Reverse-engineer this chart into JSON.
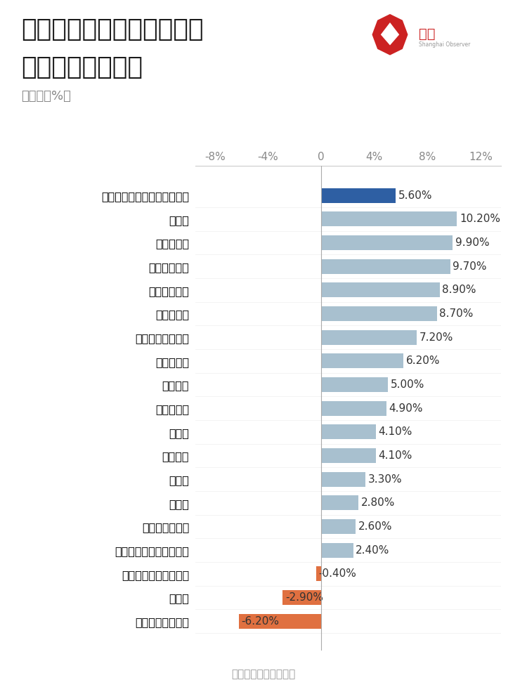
{
  "title_line1": "部分限上单位消费品零售额",
  "title_line2": "复合增长率为负值",
  "subtitle": "（单位：%）",
  "source": "数据来源：国家统计局",
  "categories": [
    "限上单位消费品零售额当期值",
    "烟酒类",
    "中西药品类",
    "石油及制品类",
    "粮油、食品类",
    "书报杂志类",
    "体育、娱乐用品类",
    "金银珠宝类",
    "化妆品类",
    "通讯器材类",
    "饮料类",
    "日用品类",
    "汽车类",
    "服装类",
    "文化办公用品类",
    "服装鞋帽、针、纺织品类",
    "家用电器和音像器材类",
    "家具类",
    "建筑及装潢材料类"
  ],
  "values": [
    5.6,
    10.2,
    9.9,
    9.7,
    8.9,
    8.7,
    7.2,
    6.2,
    5.0,
    4.9,
    4.1,
    4.1,
    3.3,
    2.8,
    2.6,
    2.4,
    -0.4,
    -2.9,
    -6.2
  ],
  "bar_colors": [
    "#2e5fa3",
    "#a8c0cf",
    "#a8c0cf",
    "#a8c0cf",
    "#a8c0cf",
    "#a8c0cf",
    "#a8c0cf",
    "#a8c0cf",
    "#a8c0cf",
    "#a8c0cf",
    "#a8c0cf",
    "#a8c0cf",
    "#a8c0cf",
    "#a8c0cf",
    "#a8c0cf",
    "#a8c0cf",
    "#e07040",
    "#e07040",
    "#e07040"
  ],
  "xlim": [
    -9.5,
    13.5
  ],
  "xticks": [
    -8,
    -4,
    0,
    4,
    8,
    12
  ],
  "xtick_labels": [
    "-8%",
    "-4%",
    "0",
    "4%",
    "8%",
    "12%"
  ],
  "background_color": "#ffffff",
  "title_fontsize": 26,
  "subtitle_fontsize": 13,
  "label_fontsize": 11.5,
  "tick_fontsize": 11,
  "value_fontsize": 11
}
